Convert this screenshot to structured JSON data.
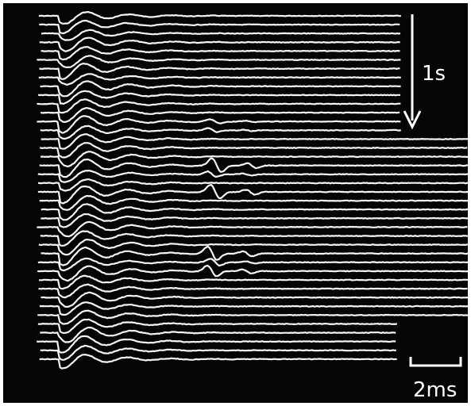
{
  "scale_bars": {
    "vertical": "1s",
    "horizontal": "2ms"
  }
}
